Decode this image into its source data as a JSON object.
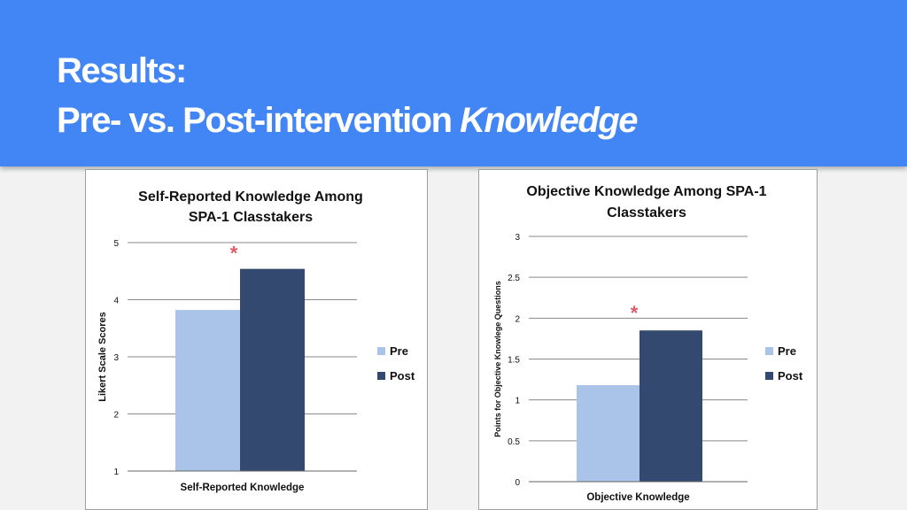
{
  "slide": {
    "title_line1": "Results:",
    "title_line2_prefix": "Pre- vs. Post-intervention ",
    "title_line2_emphasis": "Knowledge",
    "header_color": "#4285f4"
  },
  "chart_data": [
    {
      "type": "bar",
      "title": "Self-Reported Knowledge Among SPA-1 Classtakers",
      "title_lines": [
        "Self-Reported Knowledge Among",
        "SPA-1 Classtakers"
      ],
      "xlabel": "Self-Reported Knowledge",
      "ylabel": "Likert Scale Scores",
      "categories": [
        "Self-Reported Knowledge"
      ],
      "series": [
        {
          "name": "Pre",
          "values": [
            3.82
          ],
          "color": "#a9c4e8"
        },
        {
          "name": "Post",
          "values": [
            4.54
          ],
          "color": "#34496f"
        }
      ],
      "ylim": [
        1,
        5
      ],
      "yticks": [
        "1",
        "2",
        "3",
        "4",
        "5"
      ],
      "grid": true,
      "legend": "right",
      "annotation": "*",
      "annotation_color": "#e05a6a"
    },
    {
      "type": "bar",
      "title": "Objective Knowledge Among SPA-1 Classtakers",
      "title_lines": [
        "Objective Knowledge Among SPA-1",
        "Classtakers"
      ],
      "xlabel": "Objective Knowledge",
      "ylabel": "Points for Objective Knowlege Questions",
      "categories": [
        "Objective Knowledge"
      ],
      "series": [
        {
          "name": "Pre",
          "values": [
            1.18
          ],
          "color": "#a9c4e8"
        },
        {
          "name": "Post",
          "values": [
            1.85
          ],
          "color": "#34496f"
        }
      ],
      "ylim": [
        0,
        3
      ],
      "yticks": [
        "0",
        "0.5",
        "1",
        "1.5",
        "2",
        "2.5",
        "3"
      ],
      "grid": true,
      "legend": "right",
      "annotation": "*",
      "annotation_color": "#e05a6a"
    }
  ]
}
